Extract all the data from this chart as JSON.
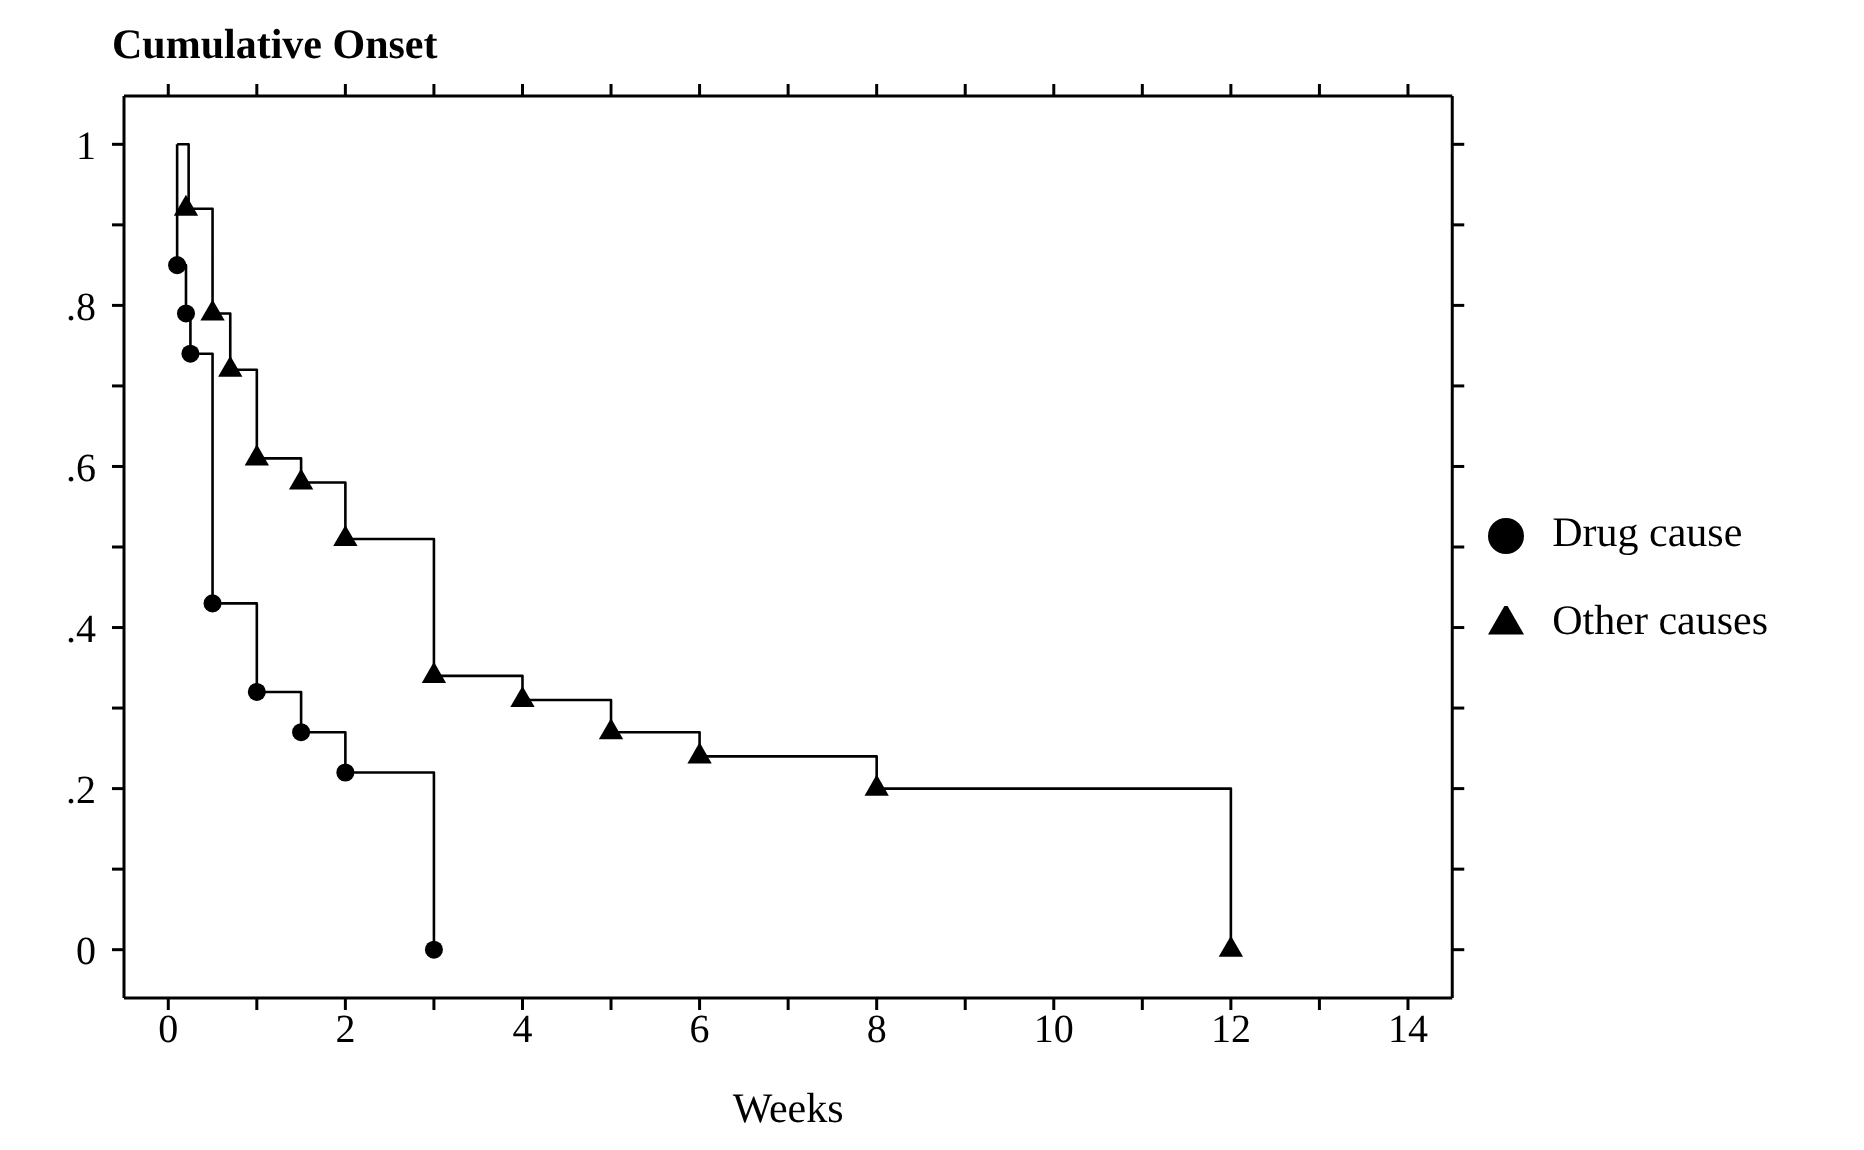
{
  "chart_data": {
    "type": "scatter",
    "title": "Cumulative Onset",
    "xlabel": "Weeks",
    "xlim": [
      -0.5,
      14.5
    ],
    "ylim": [
      -0.06,
      1.06
    ],
    "xticks": [
      0,
      {
        "value": 1,
        "label": null
      },
      2,
      {
        "value": 3,
        "label": null
      },
      4,
      {
        "value": 5,
        "label": null
      },
      6,
      {
        "value": 7,
        "label": null
      },
      8,
      {
        "value": 9,
        "label": null
      },
      10,
      {
        "value": 11,
        "label": null
      },
      12,
      {
        "value": 13,
        "label": null
      },
      14
    ],
    "yticks": [
      {
        "value": 0,
        "label": "0"
      },
      {
        "value": 0.1,
        "label": null
      },
      {
        "value": 0.2,
        "label": ".2"
      },
      {
        "value": 0.3,
        "label": null
      },
      {
        "value": 0.4,
        "label": ".4"
      },
      {
        "value": 0.5,
        "label": null
      },
      {
        "value": 0.6,
        "label": ".6"
      },
      {
        "value": 0.7,
        "label": null
      },
      {
        "value": 0.8,
        "label": ".8"
      },
      {
        "value": 0.9,
        "label": null
      },
      {
        "value": 1,
        "label": "1"
      }
    ],
    "legend": "right",
    "series": [
      {
        "type": "step",
        "color": "#000000",
        "marker": "none",
        "x": [
          0.1,
          0.1,
          0.2,
          0.25,
          0.5,
          1,
          1.5,
          2,
          3
        ],
        "values": [
          1,
          0.85,
          0.79,
          0.74,
          0.43,
          0.32,
          0.27,
          0.22,
          0
        ]
      },
      {
        "type": "step",
        "color": "#000000",
        "marker": "none",
        "x": [
          0.1,
          0.23,
          0.5,
          0.7,
          1,
          1.5,
          2,
          3,
          4,
          5,
          6,
          8,
          12
        ],
        "values": [
          1,
          0.92,
          0.79,
          0.72,
          0.61,
          0.58,
          0.51,
          0.34,
          0.31,
          0.27,
          0.24,
          0.2,
          0
        ]
      },
      {
        "name": "Drug cause",
        "color": "#000000",
        "marker": "circle",
        "x": [
          0.1,
          0.2,
          0.25,
          0.5,
          1,
          1.5,
          2,
          3
        ],
        "values": [
          0.85,
          0.79,
          0.74,
          0.43,
          0.32,
          0.27,
          0.22,
          0
        ]
      },
      {
        "name": "Other causes",
        "color": "#000000",
        "marker": "triangle",
        "x": [
          0.2,
          0.5,
          0.7,
          1,
          1.5,
          2,
          3,
          4,
          5,
          6,
          8,
          12
        ],
        "values": [
          0.92,
          0.79,
          0.72,
          0.61,
          0.58,
          0.51,
          0.34,
          0.31,
          0.27,
          0.24,
          0.2,
          0
        ]
      }
    ]
  }
}
